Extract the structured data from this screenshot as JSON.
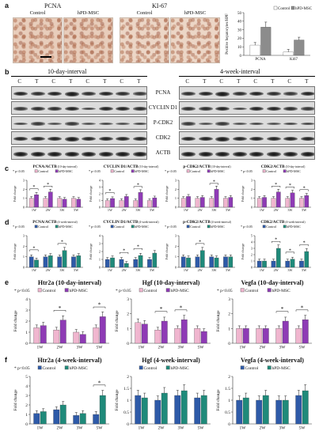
{
  "colors": {
    "control_pink": "#f0b6cf",
    "hpd_purple": "#8e3bb5",
    "control_blue": "#2e5aa8",
    "hpd_teal": "#1f8a7a",
    "grey_light": "#ffffff",
    "grey_dark": "#8c8c8c"
  },
  "panel_a": {
    "label": "a",
    "stain_titles": [
      "PCNA",
      "KI-67"
    ],
    "image_labels": [
      "Control",
      "hPD-MSC",
      "Control",
      "hPD-MSC"
    ],
    "chart": {
      "ylabel": "Positive hepatocytes/HPF",
      "pvalue": "* p<0.05",
      "legend": [
        "Control",
        "hPD-MSC"
      ]
    }
  },
  "panel_b": {
    "label": "b",
    "intervals": [
      "10-day-interval",
      "4-week-interval"
    ],
    "lane_labels": [
      "C",
      "T",
      "C",
      "T",
      "C",
      "T",
      "C",
      "T"
    ],
    "proteins": [
      "PCNA",
      "CYCLIN D1",
      "P-CDK2",
      "CDK2",
      "ACTB"
    ]
  },
  "panel_c": {
    "label": "c"
  },
  "panel_d": {
    "label": "d"
  },
  "panel_e": {
    "label": "e"
  },
  "panel_f": {
    "label": "f"
  },
  "chart_data": [
    {
      "id": "a",
      "type": "bar",
      "title": "",
      "categories": [
        "PCNA",
        "Ki67"
      ],
      "series": [
        {
          "name": "Control",
          "values": [
            12,
            4
          ]
        },
        {
          "name": "hPD-MSC",
          "values": [
            33,
            18
          ]
        }
      ],
      "ylim": [
        0,
        50
      ],
      "yticks": [
        0,
        10,
        20,
        30,
        40,
        50
      ],
      "ylabel": "Positive hepatocytes/HPF",
      "legend": "top-right"
    },
    {
      "id": "c1",
      "type": "bar",
      "title": "PCNA/ACTB",
      "subtitle": "(10-day-interval)",
      "categories": [
        "1W",
        "2W",
        "3W",
        "5W"
      ],
      "series": [
        {
          "name": "Control",
          "values": [
            1,
            1,
            1,
            1
          ]
        },
        {
          "name": "hPD-MSC",
          "values": [
            1.4,
            1.7,
            0.9,
            0.9
          ]
        }
      ],
      "ylim": [
        0,
        3
      ],
      "yticks": [
        0,
        1,
        2,
        3
      ],
      "ylabel": "Fold change",
      "pvalue": "* p<0.05",
      "sig": [
        0,
        1
      ],
      "legend": "top"
    },
    {
      "id": "c2",
      "type": "bar",
      "title": "CYCLIN D1/ACTB",
      "subtitle": "(10-day-interval)",
      "categories": [
        "1W",
        "2W",
        "3W",
        "5W"
      ],
      "series": [
        {
          "name": "Control",
          "values": [
            1,
            1,
            1,
            1
          ]
        },
        {
          "name": "hPD-MSC",
          "values": [
            1.3,
            1.6,
            2.2,
            1.4
          ]
        }
      ],
      "ylim": [
        0,
        4
      ],
      "yticks": [
        0,
        1,
        2,
        3,
        4
      ],
      "ylabel": "Fold change",
      "pvalue": "* p<0.05",
      "sig": [
        0,
        2
      ],
      "legend": "top"
    },
    {
      "id": "c3",
      "type": "bar",
      "title": "p-CDK2/ACTB",
      "subtitle": "(10-day-interval)",
      "categories": [
        "1W",
        "2W",
        "3W",
        "5W"
      ],
      "series": [
        {
          "name": "Control",
          "values": [
            1,
            1,
            1,
            1
          ]
        },
        {
          "name": "hPD-MSC",
          "values": [
            1.2,
            1.1,
            2.0,
            1.1
          ]
        }
      ],
      "ylim": [
        0,
        3
      ],
      "yticks": [
        0,
        1,
        2,
        3
      ],
      "ylabel": "Fold change",
      "pvalue": "* p<0.05",
      "sig": [
        2
      ],
      "legend": "top"
    },
    {
      "id": "c4",
      "type": "bar",
      "title": "CDK2/ACTB",
      "subtitle": "(10-day-interval)",
      "categories": [
        "1W",
        "2W",
        "3W",
        "5W"
      ],
      "series": [
        {
          "name": "Control",
          "values": [
            1,
            1,
            1,
            1
          ]
        },
        {
          "name": "hPD-MSC",
          "values": [
            1.1,
            1.7,
            1.6,
            1.3
          ]
        }
      ],
      "ylim": [
        0,
        3
      ],
      "yticks": [
        0,
        1,
        2,
        3
      ],
      "ylabel": "Fold change",
      "pvalue": "* p<0.05",
      "sig": [
        1,
        2,
        3
      ],
      "legend": "top"
    },
    {
      "id": "d1",
      "type": "bar",
      "title": "PCNA/ACTB",
      "subtitle": "(4-week-interval)",
      "categories": [
        "1W",
        "2W",
        "3W",
        "5W"
      ],
      "series": [
        {
          "name": "Control",
          "values": [
            1,
            1,
            1,
            1
          ]
        },
        {
          "name": "hPD-MSC",
          "values": [
            0.7,
            1.1,
            1.6,
            1.1
          ]
        }
      ],
      "ylim": [
        0,
        3
      ],
      "yticks": [
        0,
        1,
        2,
        3
      ],
      "ylabel": "Fold change",
      "pvalue": "* p<0.05",
      "sig": [
        0,
        2
      ],
      "legend": "top"
    },
    {
      "id": "d2",
      "type": "bar",
      "title": "CYCLIN D1/ACTB",
      "subtitle": "(4-week-interval)",
      "categories": [
        "1W",
        "2W",
        "3W",
        "5W"
      ],
      "series": [
        {
          "name": "Control",
          "values": [
            1,
            1,
            1,
            1
          ]
        },
        {
          "name": "hPD-MSC",
          "values": [
            1.2,
            0.5,
            1.5,
            1.8
          ]
        }
      ],
      "ylim": [
        0,
        4
      ],
      "yticks": [
        0,
        1,
        2,
        3,
        4
      ],
      "ylabel": "Fold change",
      "pvalue": "* p<0.05",
      "sig": [
        1,
        2
      ],
      "legend": "top"
    },
    {
      "id": "d3",
      "type": "bar",
      "title": "p-CDK2/ACTB",
      "subtitle": "(4-week-interval)",
      "categories": [
        "1W",
        "2W",
        "3W",
        "5W"
      ],
      "series": [
        {
          "name": "Control",
          "values": [
            1,
            1,
            1,
            1
          ]
        },
        {
          "name": "hPD-MSC",
          "values": [
            0.9,
            1.6,
            0.9,
            1.0
          ]
        }
      ],
      "ylim": [
        0,
        3
      ],
      "yticks": [
        0,
        1,
        2,
        3
      ],
      "ylabel": "Fold change",
      "pvalue": "* p<0.05",
      "sig": [
        1
      ],
      "legend": "top"
    },
    {
      "id": "d4",
      "type": "bar",
      "title": "CDK2/ACTB",
      "subtitle": "(4-week-interval)",
      "categories": [
        "1W",
        "2W",
        "3W",
        "5W"
      ],
      "series": [
        {
          "name": "Control",
          "values": [
            1,
            1,
            1,
            1
          ]
        },
        {
          "name": "hPD-MSC",
          "values": [
            1.0,
            3.0,
            1.3,
            2.5
          ]
        }
      ],
      "ylim": [
        0,
        5
      ],
      "yticks": [
        0,
        1,
        2,
        3,
        4,
        5
      ],
      "ylabel": "Fold change",
      "pvalue": "* p<0.05",
      "sig": [
        1,
        2,
        3
      ],
      "legend": "top"
    },
    {
      "id": "e1",
      "type": "bar",
      "title": "Htr2a (10-day-interval)",
      "categories": [
        "1W",
        "2W",
        "3W",
        "5W"
      ],
      "series": [
        {
          "name": "Control",
          "values": [
            1.4,
            1.2,
            1.0,
            1.4
          ]
        },
        {
          "name": "hPD-MSC",
          "values": [
            1.6,
            2.1,
            0.8,
            2.4
          ]
        }
      ],
      "ylim": [
        0,
        4
      ],
      "yticks": [
        0,
        1,
        2,
        3,
        4
      ],
      "ylabel": "Fold change",
      "pvalue": "* p<0.05",
      "sig": [
        1,
        3
      ],
      "legend": "top"
    },
    {
      "id": "e2",
      "type": "bar",
      "title": "Hgf (10-day-interval)",
      "categories": [
        "1W",
        "2W",
        "3W",
        "5W"
      ],
      "series": [
        {
          "name": "Control",
          "values": [
            1.4,
            0.9,
            1.0,
            1.0
          ]
        },
        {
          "name": "hPD-MSC",
          "values": [
            1.3,
            1.5,
            1.6,
            0.8
          ]
        }
      ],
      "ylim": [
        0,
        3
      ],
      "yticks": [
        0,
        1,
        2,
        3
      ],
      "ylabel": "Fold change",
      "pvalue": "* p<0.05",
      "sig": [
        1,
        2
      ],
      "legend": "top"
    },
    {
      "id": "e3",
      "type": "bar",
      "title": "Vegfa (10-day-interval)",
      "categories": [
        "1W",
        "2W",
        "3W",
        "5W"
      ],
      "series": [
        {
          "name": "Control",
          "values": [
            1.0,
            1.0,
            1.0,
            1.0
          ]
        },
        {
          "name": "hPD-MSC",
          "values": [
            1.0,
            1.0,
            1.5,
            1.6
          ]
        }
      ],
      "ylim": [
        0,
        3
      ],
      "yticks": [
        0,
        1,
        2,
        3
      ],
      "ylabel": "Fold change",
      "pvalue": "* p<0.05",
      "sig": [
        2,
        3
      ],
      "legend": "top"
    },
    {
      "id": "f1",
      "type": "bar",
      "title": "Htr2a (4-week-interval)",
      "categories": [
        "1W",
        "2W",
        "3W",
        "5W"
      ],
      "series": [
        {
          "name": "Control",
          "values": [
            1.1,
            1.5,
            0.9,
            1.0
          ]
        },
        {
          "name": "hPD-MSC",
          "values": [
            1.3,
            2.0,
            1.1,
            3.0
          ]
        }
      ],
      "ylim": [
        0,
        5
      ],
      "yticks": [
        0,
        1,
        2,
        3,
        4,
        5
      ],
      "ylabel": "Fold change",
      "pvalue": "* p<0.05",
      "sig": [
        3
      ],
      "legend": "top"
    },
    {
      "id": "f2",
      "type": "bar",
      "title": "Hgf (4-week-interval)",
      "categories": [
        "1W",
        "2W",
        "3W",
        "5W"
      ],
      "series": [
        {
          "name": "Control",
          "values": [
            1.2,
            1.0,
            1.2,
            1.1
          ]
        },
        {
          "name": "hPD-MSC",
          "values": [
            1.1,
            1.3,
            1.4,
            1.2
          ]
        }
      ],
      "ylim": [
        0,
        2
      ],
      "yticks": [
        0,
        0.5,
        1,
        1.5,
        2
      ],
      "ylabel": "Fold change",
      "pvalue": "",
      "sig": [],
      "legend": "top"
    },
    {
      "id": "f3",
      "type": "bar",
      "title": "Vegfa (4-week-interval)",
      "categories": [
        "1W",
        "2W",
        "3W",
        "5W"
      ],
      "series": [
        {
          "name": "Control",
          "values": [
            1.0,
            1.0,
            1.0,
            1.2
          ]
        },
        {
          "name": "hPD-MSC",
          "values": [
            1.1,
            1.2,
            1.0,
            1.4
          ]
        }
      ],
      "ylim": [
        0,
        2
      ],
      "yticks": [
        0,
        0.5,
        1,
        1.5,
        2
      ],
      "ylabel": "Fold change",
      "pvalue": "",
      "sig": [],
      "legend": "top"
    }
  ]
}
